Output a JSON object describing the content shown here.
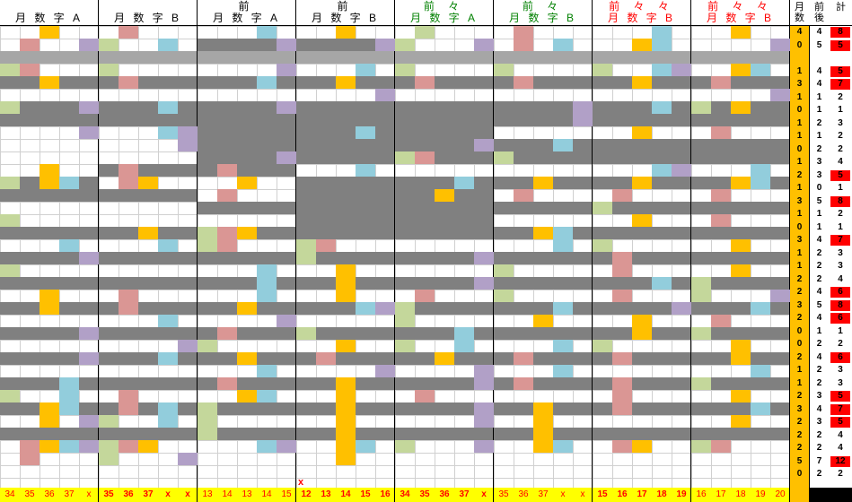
{
  "header": [
    {
      "l1": "",
      "l2": "月 数 字 A",
      "c1": "#000",
      "c2": "#000"
    },
    {
      "l1": "",
      "l2": "月 数 字 B",
      "c1": "#000",
      "c2": "#000"
    },
    {
      "l1": "前",
      "l2": "月 数 字 A",
      "c1": "#000",
      "c2": "#000"
    },
    {
      "l1": "前",
      "l2": "月 数 字 B",
      "c1": "#000",
      "c2": "#000"
    },
    {
      "l1": "前 々",
      "l2": "月 数 字 A",
      "c1": "#008000",
      "c2": "#008000"
    },
    {
      "l1": "前 々",
      "l2": "月 数 字 B",
      "c1": "#008000",
      "c2": "#008000"
    },
    {
      "l1": "前 々 々",
      "l2": "月 数 字 B",
      "c1": "#ff0000",
      "c2": "#ff0000"
    },
    {
      "l1": "前 々 々",
      "l2": "月 数 字 B",
      "c1": "#ff0000",
      "c2": "#ff0000"
    }
  ],
  "side_header": {
    "col1": "月数",
    "col2": "前後",
    "col3": "計"
  },
  "footer": [
    {
      "values": [
        "34",
        "35",
        "36",
        "37",
        "x"
      ],
      "color": "#ff0000",
      "bold": false
    },
    {
      "values": [
        "35",
        "36",
        "37",
        "x",
        "x"
      ],
      "color": "#ff0000",
      "bold": true
    },
    {
      "values": [
        "13",
        "14",
        "13",
        "14",
        "15"
      ],
      "color": "#ff0000",
      "bold": false
    },
    {
      "values": [
        "12",
        "13",
        "14",
        "15",
        "16"
      ],
      "color": "#ff0000",
      "bold": true
    },
    {
      "values": [
        "34",
        "35",
        "36",
        "37",
        "x"
      ],
      "color": "#ff0000",
      "bold": true
    },
    {
      "values": [
        "35",
        "36",
        "37",
        "x",
        "x"
      ],
      "color": "#ff0000",
      "bold": false
    },
    {
      "values": [
        "15",
        "16",
        "17",
        "18",
        "19"
      ],
      "color": "#ff0000",
      "bold": true
    },
    {
      "values": [
        "16",
        "17",
        "18",
        "19",
        "20"
      ],
      "color": "#ff0000",
      "bold": false
    }
  ],
  "extra_mark": "x",
  "side_rows": [
    [
      "4",
      "4",
      "8"
    ],
    [
      "0",
      "5",
      "5"
    ],
    [
      "",
      "",
      " "
    ],
    [
      "1",
      "4",
      "5"
    ],
    [
      "3",
      "4",
      "7"
    ],
    [
      "1",
      "1",
      "2"
    ],
    [
      "0",
      "1",
      "1"
    ],
    [
      "1",
      "2",
      "3"
    ],
    [
      "1",
      "1",
      "2"
    ],
    [
      "0",
      "2",
      "2"
    ],
    [
      "1",
      "3",
      "4"
    ],
    [
      "2",
      "3",
      "5"
    ],
    [
      "1",
      "0",
      "1"
    ],
    [
      "3",
      "5",
      "8"
    ],
    [
      "1",
      "1",
      "2"
    ],
    [
      "0",
      "1",
      "1"
    ],
    [
      "3",
      "4",
      "7"
    ],
    [
      "1",
      "2",
      "3"
    ],
    [
      "1",
      "2",
      "3"
    ],
    [
      "2",
      "2",
      "4"
    ],
    [
      "2",
      "4",
      "6"
    ],
    [
      "3",
      "5",
      "8"
    ],
    [
      "2",
      "4",
      "6"
    ],
    [
      "0",
      "1",
      "1"
    ],
    [
      "0",
      "2",
      "2"
    ],
    [
      "2",
      "4",
      "6"
    ],
    [
      "1",
      "2",
      "3"
    ],
    [
      "1",
      "2",
      "3"
    ],
    [
      "2",
      "3",
      "5"
    ],
    [
      "3",
      "4",
      "7"
    ],
    [
      "2",
      "3",
      "5"
    ],
    [
      "2",
      "2",
      "4"
    ],
    [
      "2",
      "2",
      "4"
    ],
    [
      "5",
      "7",
      "12"
    ],
    [
      "0",
      "2",
      "2"
    ]
  ],
  "colors": {
    "orange": "#ffc000",
    "pink": "#da9694",
    "blue": "#92cddc",
    "purple": "#b1a0c7",
    "green": "#c4d79b",
    "gray": "#808080",
    "lightgray": "#a6a6a6",
    "red": "#ff0000",
    "yellow": "#ffff00",
    "white": "#ffffff",
    "sidebar_orange": "#ffc000"
  }
}
